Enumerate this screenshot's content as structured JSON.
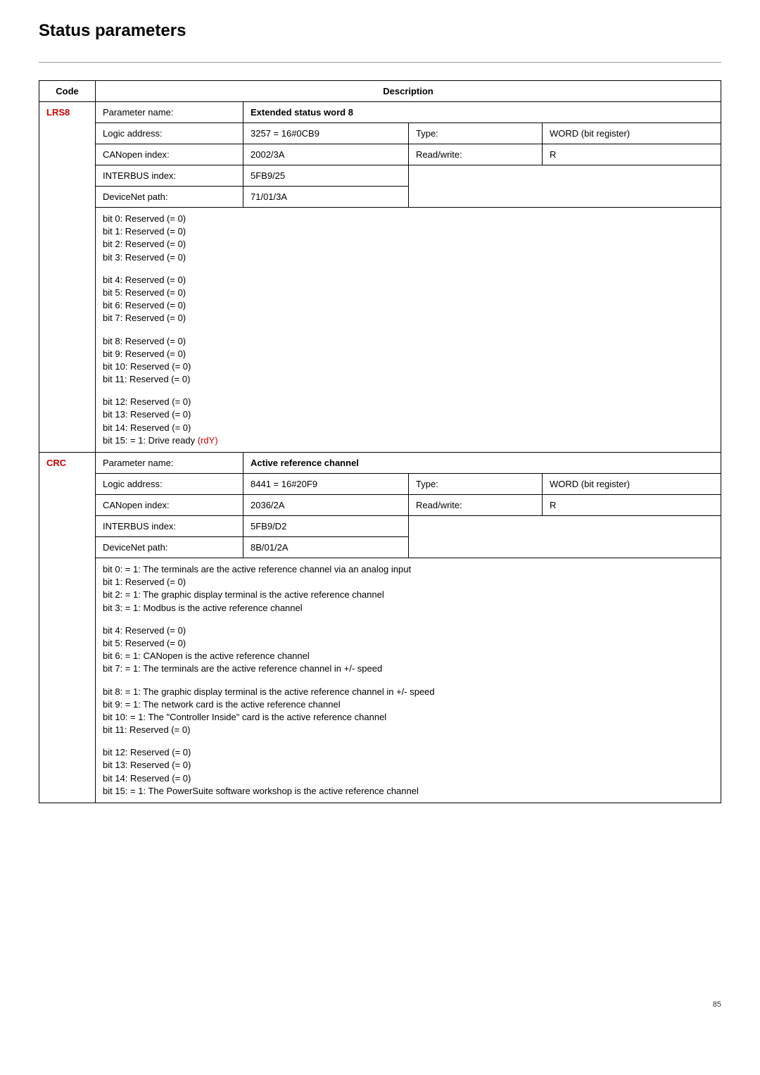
{
  "pageTitle": "Status parameters",
  "headers": {
    "code": "Code",
    "description": "Description"
  },
  "labels": {
    "paramName": "Parameter name:",
    "logicAddr": "Logic address:",
    "canopen": "CANopen index:",
    "interbus": "INTERBUS index:",
    "devicenet": "DeviceNet path:",
    "type": "Type:",
    "readwrite": "Read/write:"
  },
  "params": [
    {
      "code": "LRS8",
      "name": "Extended status word 8",
      "logicAddr": "3257 = 16#0CB9",
      "canopen": "2002/3A",
      "interbus": "5FB9/25",
      "devicenet": "71/01/3A",
      "type": "WORD (bit register)",
      "rw": "R",
      "bitGroups": [
        [
          {
            "text": "bit 0: Reserved (= 0)"
          },
          {
            "text": "bit 1: Reserved (= 0)"
          },
          {
            "text": "bit 2: Reserved (= 0)"
          },
          {
            "text": "bit 3: Reserved (= 0)"
          }
        ],
        [
          {
            "text": "bit 4: Reserved (= 0)"
          },
          {
            "text": "bit 5: Reserved (= 0)"
          },
          {
            "text": "bit 6: Reserved (= 0)"
          },
          {
            "text": "bit 7: Reserved (= 0)"
          }
        ],
        [
          {
            "text": "bit 8: Reserved (= 0)"
          },
          {
            "text": "bit 9: Reserved (= 0)"
          },
          {
            "text": "bit 10: Reserved (= 0)"
          },
          {
            "text": "bit 11: Reserved (= 0)"
          }
        ],
        [
          {
            "text": "bit 12: Reserved (= 0)"
          },
          {
            "text": "bit 13: Reserved (= 0)"
          },
          {
            "text": "bit 14: Reserved (= 0)"
          },
          {
            "text": "bit 15: = 1: Drive ready ",
            "appendRed": "(rdY)"
          }
        ]
      ]
    },
    {
      "code": "CRC",
      "name": "Active reference channel",
      "logicAddr": "8441 = 16#20F9",
      "canopen": "2036/2A",
      "interbus": "5FB9/D2",
      "devicenet": "8B/01/2A",
      "type": "WORD (bit register)",
      "rw": "R",
      "bitGroups": [
        [
          {
            "text": "bit 0: = 1: The terminals are the active reference channel via an analog input"
          },
          {
            "text": "bit 1: Reserved (= 0)"
          },
          {
            "text": "bit 2: = 1: The graphic display terminal is the active reference channel"
          },
          {
            "text": "bit 3: = 1: Modbus is the active reference channel"
          }
        ],
        [
          {
            "text": "bit 4: Reserved (= 0)"
          },
          {
            "text": "bit 5: Reserved (= 0)"
          },
          {
            "text": "bit 6: = 1: CANopen is the active reference channel"
          },
          {
            "text": "bit 7: = 1: The terminals are the active reference channel in +/- speed"
          }
        ],
        [
          {
            "text": "bit 8: = 1: The graphic display terminal is the active reference channel in +/- speed"
          },
          {
            "text": "bit 9: = 1: The network card is the active reference channel"
          },
          {
            "text": "bit 10: = 1: The \"Controller Inside\" card is the active reference channel"
          },
          {
            "text": "bit 11: Reserved (= 0)"
          }
        ],
        [
          {
            "text": "bit 12: Reserved (= 0)"
          },
          {
            "text": "bit 13: Reserved (= 0)"
          },
          {
            "text": "bit 14: Reserved (= 0)"
          },
          {
            "text": "bit 15: = 1: The PowerSuite software workshop is the active reference channel"
          }
        ]
      ]
    }
  ],
  "pageNumber": "85"
}
